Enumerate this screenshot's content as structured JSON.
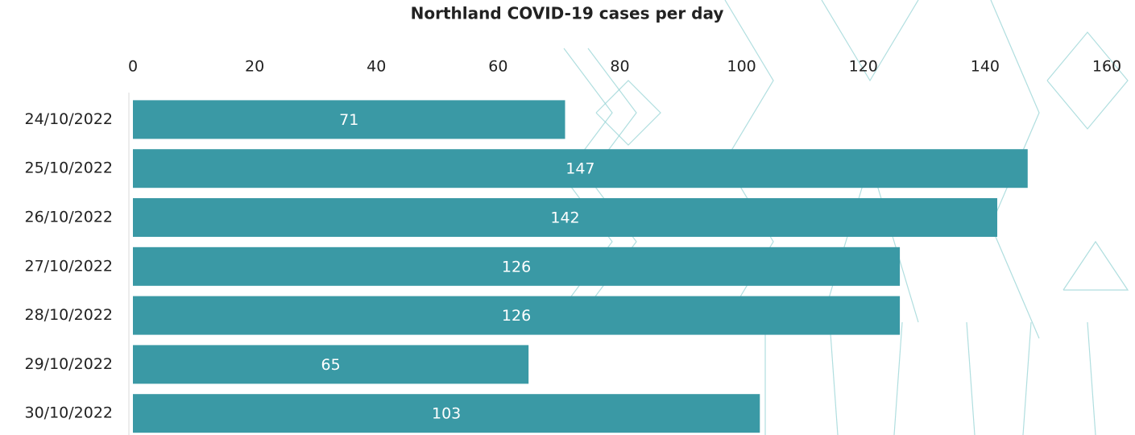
{
  "chart_data": {
    "type": "bar",
    "orientation": "horizontal",
    "title": "Northland COVID-19 cases per day",
    "categories": [
      "24/10/2022",
      "25/10/2022",
      "26/10/2022",
      "27/10/2022",
      "28/10/2022",
      "29/10/2022",
      "30/10/2022"
    ],
    "values": [
      71,
      147,
      142,
      126,
      126,
      65,
      103
    ],
    "color": "#3a99a5",
    "xlim": [
      0,
      160
    ],
    "xticks": [
      0,
      20,
      40,
      60,
      80,
      100,
      120,
      140,
      160
    ],
    "grid": false
  }
}
